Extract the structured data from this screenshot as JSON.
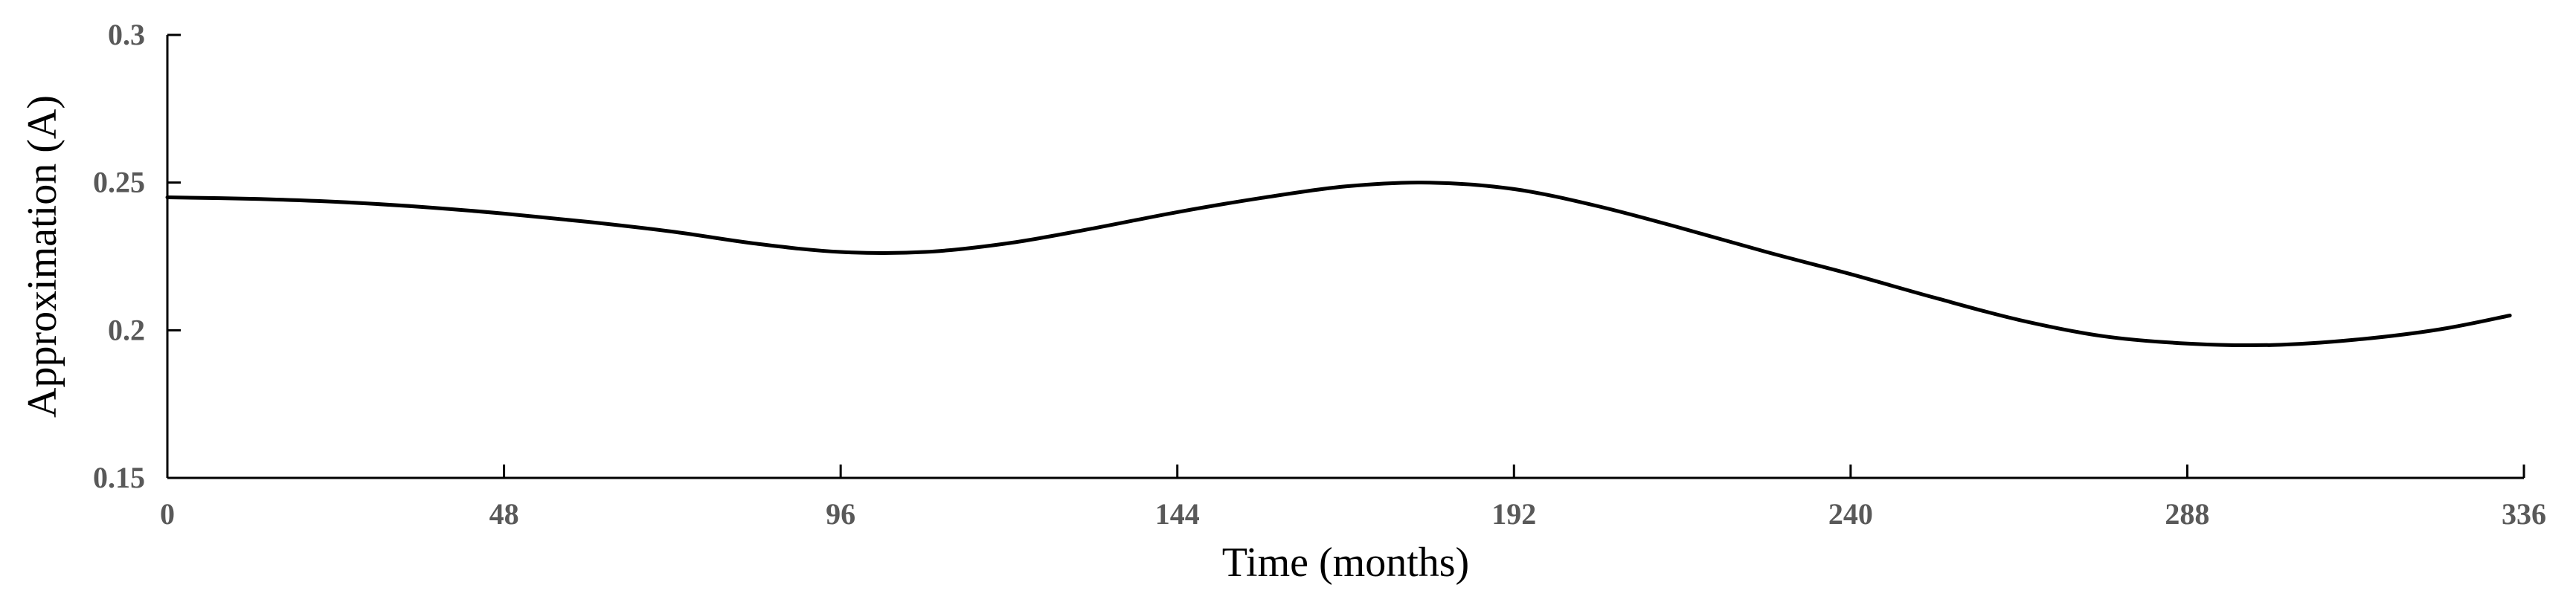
{
  "chart_data": {
    "type": "line",
    "title": "",
    "xlabel": "Time (months)",
    "ylabel": "Approximation (A)",
    "xlim": [
      0,
      336
    ],
    "ylim": [
      0.15,
      0.3
    ],
    "xticks": [
      0,
      48,
      96,
      144,
      192,
      240,
      288,
      336
    ],
    "xtick_labels": [
      "0",
      "48",
      "96",
      "144",
      "192",
      "240",
      "288",
      "336"
    ],
    "yticks": [
      0.15,
      0.2,
      0.25,
      0.3
    ],
    "ytick_labels": [
      "0.15",
      "0.2",
      "0.25",
      "0.3"
    ],
    "grid": false,
    "legend": false,
    "colors": {
      "line": "#000000",
      "axis": "#000000",
      "tick_text": "#595959"
    },
    "series": [
      {
        "name": "",
        "x": [
          0,
          12,
          24,
          36,
          48,
          60,
          72,
          84,
          96,
          108,
          120,
          132,
          144,
          156,
          168,
          180,
          192,
          204,
          216,
          228,
          240,
          252,
          264,
          276,
          288,
          300,
          312,
          324,
          334
        ],
        "y": [
          0.245,
          0.2445,
          0.2435,
          0.2418,
          0.2395,
          0.2367,
          0.2334,
          0.2293,
          0.2265,
          0.2265,
          0.2295,
          0.2345,
          0.24,
          0.2448,
          0.2487,
          0.25,
          0.2478,
          0.242,
          0.2345,
          0.2265,
          0.219,
          0.211,
          0.2035,
          0.198,
          0.1955,
          0.195,
          0.1968,
          0.2003,
          0.205
        ]
      }
    ]
  }
}
